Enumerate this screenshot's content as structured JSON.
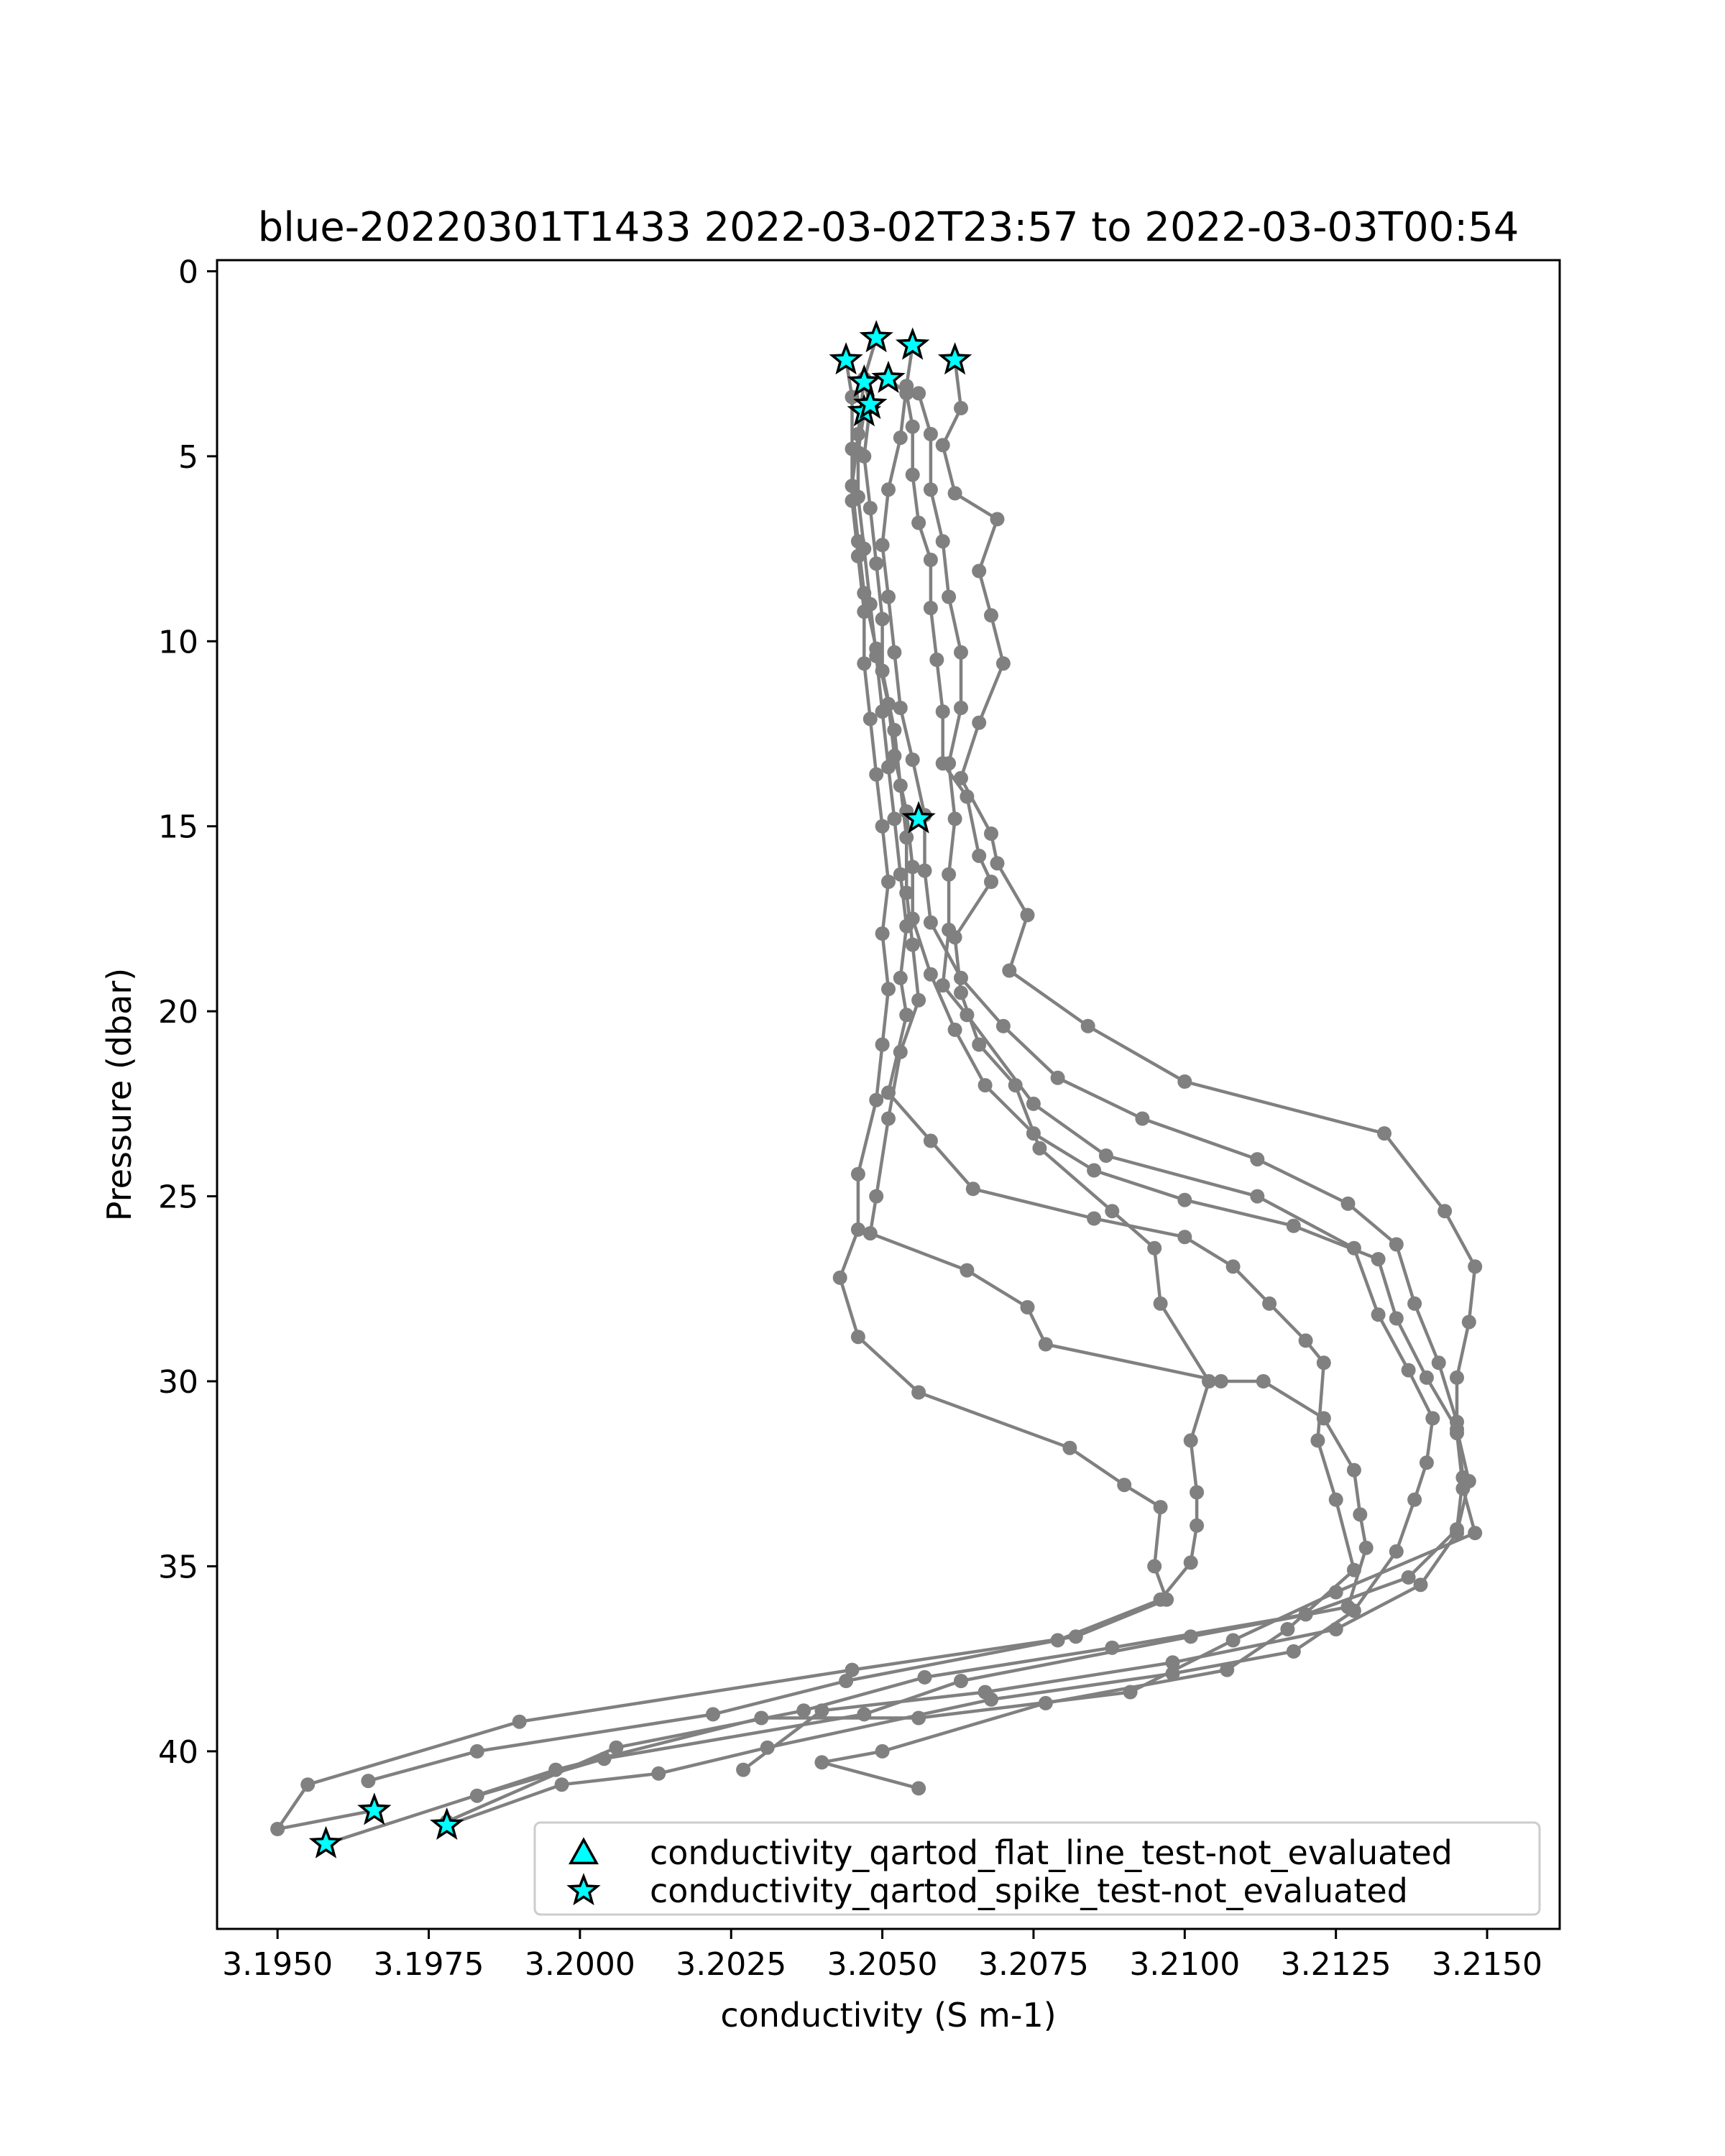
{
  "chart_data": {
    "type": "line",
    "title": "blue-20220301T1433 2022-03-02T23:57 to 2022-03-03T00:54",
    "xlabel": "conductivity (S m-1)",
    "ylabel": "Pressure (dbar)",
    "xlim": [
      3.194,
      3.2162
    ],
    "ylim": [
      44.8,
      -0.3
    ],
    "y_inverted": true,
    "grid": false,
    "x_ticks": [
      3.195,
      3.1975,
      3.2,
      3.2025,
      3.205,
      3.2075,
      3.21,
      3.2125,
      3.215
    ],
    "x_tick_labels": [
      "3.1950",
      "3.1975",
      "3.2000",
      "3.2025",
      "3.2050",
      "3.2075",
      "3.2100",
      "3.2125",
      "3.2150"
    ],
    "y_ticks": [
      0,
      5,
      10,
      15,
      20,
      25,
      30,
      35,
      40
    ],
    "y_tick_labels": [
      "0",
      "5",
      "10",
      "15",
      "20",
      "25",
      "30",
      "35",
      "40"
    ],
    "line_color": "#808080",
    "marker_fill": "#00ffff",
    "marker_edge": "#000000",
    "legend": {
      "position": "lower-right",
      "entries": [
        {
          "label": "conductivity_qartod_flat_line_test-not_evaluated",
          "marker": "triangle"
        },
        {
          "label": "conductivity_qartod_spike_test-not_evaluated",
          "marker": "star"
        }
      ]
    },
    "series": [
      {
        "points": [
          [
            3.2049,
            1.8
          ],
          [
            3.2047,
            2.9
          ],
          [
            3.2046,
            4.4
          ],
          [
            3.2045,
            5.8
          ],
          [
            3.2046,
            7.3
          ],
          [
            3.2047,
            8.7
          ],
          [
            3.2049,
            10.2
          ],
          [
            3.2051,
            11.7
          ],
          [
            3.2052,
            13.1
          ],
          [
            3.2054,
            14.6
          ],
          [
            3.2055,
            16.1
          ],
          [
            3.2055,
            17.5
          ],
          [
            3.2058,
            19.0
          ],
          [
            3.2062,
            20.5
          ],
          [
            3.2067,
            22.0
          ],
          [
            3.2075,
            23.3
          ],
          [
            3.2085,
            24.3
          ],
          [
            3.21,
            25.1
          ],
          [
            3.2118,
            25.8
          ],
          [
            3.2132,
            26.7
          ],
          [
            3.2135,
            28.3
          ],
          [
            3.214,
            29.9
          ],
          [
            3.2145,
            31.3
          ],
          [
            3.2147,
            32.7
          ],
          [
            3.2145,
            34.1
          ],
          [
            3.2139,
            35.5
          ],
          [
            3.2125,
            36.7
          ],
          [
            3.2098,
            37.6
          ],
          [
            3.2067,
            38.4
          ],
          [
            3.204,
            38.9
          ],
          [
            3.2027,
            40.5
          ]
        ]
      },
      {
        "points": [
          [
            3.2055,
            2.0
          ],
          [
            3.2054,
            3.1
          ],
          [
            3.2053,
            4.5
          ],
          [
            3.2051,
            5.9
          ],
          [
            3.205,
            7.4
          ],
          [
            3.2051,
            8.8
          ],
          [
            3.2052,
            10.3
          ],
          [
            3.2053,
            11.8
          ],
          [
            3.2055,
            13.2
          ],
          [
            3.2057,
            14.7
          ],
          [
            3.2057,
            16.2
          ],
          [
            3.2058,
            17.6
          ],
          [
            3.2063,
            19.1
          ],
          [
            3.207,
            20.4
          ],
          [
            3.2079,
            21.8
          ],
          [
            3.2093,
            22.9
          ],
          [
            3.2112,
            24.0
          ],
          [
            3.2127,
            25.2
          ],
          [
            3.2135,
            26.3
          ],
          [
            3.2138,
            27.9
          ],
          [
            3.2142,
            29.5
          ],
          [
            3.2145,
            31.1
          ],
          [
            3.2146,
            32.6
          ],
          [
            3.2145,
            34.0
          ],
          [
            3.2137,
            35.3
          ],
          [
            3.212,
            36.3
          ],
          [
            3.2088,
            37.2
          ],
          [
            3.2057,
            38.0
          ],
          [
            3.2037,
            38.9
          ],
          [
            3.2006,
            39.9
          ],
          [
            3.1978,
            41.9
          ]
        ]
      },
      {
        "points": [
          [
            3.2062,
            2.4
          ],
          [
            3.2063,
            3.7
          ],
          [
            3.206,
            4.7
          ],
          [
            3.2062,
            6.0
          ],
          [
            3.2069,
            6.7
          ],
          [
            3.2066,
            8.1
          ],
          [
            3.2068,
            9.3
          ],
          [
            3.207,
            10.6
          ],
          [
            3.2066,
            12.2
          ],
          [
            3.2063,
            13.7
          ],
          [
            3.2068,
            15.2
          ],
          [
            3.2069,
            16.0
          ],
          [
            3.2074,
            17.4
          ],
          [
            3.2071,
            18.9
          ],
          [
            3.2084,
            20.4
          ],
          [
            3.21,
            21.9
          ],
          [
            3.2133,
            23.3
          ],
          [
            3.2143,
            25.4
          ],
          [
            3.2148,
            26.9
          ],
          [
            3.2147,
            28.4
          ],
          [
            3.2145,
            29.9
          ],
          [
            3.2145,
            31.4
          ],
          [
            3.2146,
            32.9
          ],
          [
            3.2148,
            34.1
          ],
          [
            3.2125,
            35.7
          ],
          [
            3.2108,
            37.0
          ],
          [
            3.2091,
            38.4
          ],
          [
            3.2056,
            39.1
          ],
          [
            3.203,
            39.1
          ],
          [
            3.1996,
            40.5
          ],
          [
            3.1958,
            42.5
          ]
        ]
      },
      {
        "points": [
          [
            3.2044,
            2.4
          ],
          [
            3.2045,
            3.4
          ],
          [
            3.2045,
            4.8
          ],
          [
            3.2045,
            6.2
          ],
          [
            3.2046,
            7.7
          ],
          [
            3.2047,
            9.2
          ],
          [
            3.2047,
            10.6
          ],
          [
            3.2048,
            12.1
          ],
          [
            3.2049,
            13.6
          ],
          [
            3.205,
            15.0
          ],
          [
            3.2051,
            16.5
          ],
          [
            3.205,
            17.9
          ],
          [
            3.2051,
            19.4
          ],
          [
            3.205,
            20.9
          ],
          [
            3.2049,
            22.4
          ],
          [
            3.2046,
            24.4
          ],
          [
            3.2046,
            25.9
          ],
          [
            3.2043,
            27.2
          ],
          [
            3.2046,
            28.8
          ],
          [
            3.2056,
            30.3
          ],
          [
            3.2081,
            31.8
          ],
          [
            3.209,
            32.8
          ],
          [
            3.2096,
            33.4
          ],
          [
            3.2095,
            35.0
          ],
          [
            3.2097,
            35.9
          ],
          [
            3.2082,
            36.9
          ],
          [
            3.2045,
            37.8
          ],
          [
            3.199,
            39.2
          ],
          [
            3.1955,
            40.9
          ],
          [
            3.195,
            42.1
          ],
          [
            3.1966,
            41.6
          ]
        ]
      },
      {
        "points": [
          [
            3.2047,
            3.0
          ],
          [
            3.2048,
            3.6
          ],
          [
            3.2047,
            5.0
          ],
          [
            3.2048,
            6.4
          ],
          [
            3.2049,
            7.9
          ],
          [
            3.205,
            9.4
          ],
          [
            3.205,
            10.8
          ],
          [
            3.2052,
            12.4
          ],
          [
            3.2053,
            13.9
          ],
          [
            3.2054,
            15.3
          ],
          [
            3.2054,
            16.8
          ],
          [
            3.2055,
            18.2
          ],
          [
            3.2056,
            19.7
          ],
          [
            3.2053,
            21.1
          ],
          [
            3.2051,
            22.9
          ],
          [
            3.2049,
            25.0
          ],
          [
            3.2048,
            26.0
          ],
          [
            3.2064,
            27.0
          ],
          [
            3.2074,
            28.0
          ],
          [
            3.2077,
            29.0
          ],
          [
            3.2106,
            30.0
          ],
          [
            3.2113,
            30.0
          ],
          [
            3.2123,
            31.0
          ],
          [
            3.2128,
            32.4
          ],
          [
            3.2129,
            33.6
          ],
          [
            3.213,
            34.5
          ],
          [
            3.2127,
            36.1
          ],
          [
            3.2101,
            36.9
          ],
          [
            3.2063,
            38.1
          ],
          [
            3.2047,
            39.0
          ],
          [
            3.2004,
            40.2
          ],
          [
            3.1983,
            41.2
          ]
        ]
      },
      {
        "points": [
          [
            3.2051,
            2.9
          ],
          [
            3.2054,
            3.3
          ],
          [
            3.2055,
            4.2
          ],
          [
            3.2055,
            5.5
          ],
          [
            3.2056,
            6.8
          ],
          [
            3.2058,
            7.8
          ],
          [
            3.2058,
            9.1
          ],
          [
            3.2059,
            10.5
          ],
          [
            3.206,
            11.9
          ],
          [
            3.206,
            13.3
          ],
          [
            3.2064,
            14.2
          ],
          [
            3.2066,
            15.8
          ],
          [
            3.2068,
            16.5
          ],
          [
            3.2062,
            18.0
          ],
          [
            3.2063,
            19.5
          ],
          [
            3.2066,
            20.9
          ],
          [
            3.2072,
            22.0
          ],
          [
            3.2076,
            23.7
          ],
          [
            3.2088,
            25.4
          ],
          [
            3.2095,
            26.4
          ],
          [
            3.2096,
            27.9
          ],
          [
            3.2104,
            30.0
          ],
          [
            3.2101,
            31.6
          ],
          [
            3.2102,
            33.0
          ],
          [
            3.2102,
            33.9
          ],
          [
            3.2101,
            34.9
          ],
          [
            3.2096,
            35.9
          ],
          [
            3.2079,
            37.0
          ],
          [
            3.2044,
            38.1
          ],
          [
            3.2022,
            39.0
          ],
          [
            3.1983,
            40.0
          ],
          [
            3.1965,
            40.8
          ]
        ]
      },
      {
        "points": [
          [
            3.2056,
            3.3
          ],
          [
            3.2058,
            4.4
          ],
          [
            3.2058,
            5.9
          ],
          [
            3.206,
            7.3
          ],
          [
            3.2061,
            8.8
          ],
          [
            3.2063,
            10.3
          ],
          [
            3.2063,
            11.8
          ],
          [
            3.2061,
            13.3
          ],
          [
            3.2062,
            14.8
          ],
          [
            3.2061,
            16.3
          ],
          [
            3.2061,
            17.8
          ],
          [
            3.206,
            19.3
          ],
          [
            3.2064,
            20.1
          ],
          [
            3.2075,
            22.5
          ],
          [
            3.2087,
            23.9
          ],
          [
            3.2112,
            25.0
          ],
          [
            3.2128,
            26.4
          ],
          [
            3.2132,
            28.2
          ],
          [
            3.2137,
            29.7
          ],
          [
            3.2141,
            31.0
          ],
          [
            3.214,
            32.2
          ],
          [
            3.2138,
            33.2
          ],
          [
            3.2135,
            34.6
          ],
          [
            3.2128,
            36.2
          ],
          [
            3.2118,
            37.3
          ],
          [
            3.2098,
            37.9
          ],
          [
            3.2068,
            38.6
          ],
          [
            3.2031,
            39.9
          ],
          [
            3.2013,
            40.6
          ],
          [
            3.1997,
            40.9
          ],
          [
            3.1978,
            42.0
          ]
        ]
      },
      {
        "points": [
          [
            3.2047,
            3.8
          ],
          [
            3.2046,
            4.9
          ],
          [
            3.2046,
            6.1
          ],
          [
            3.2047,
            7.5
          ],
          [
            3.2048,
            9.0
          ],
          [
            3.2049,
            10.4
          ],
          [
            3.205,
            11.9
          ],
          [
            3.2051,
            13.4
          ],
          [
            3.2052,
            14.8
          ],
          [
            3.2053,
            16.3
          ],
          [
            3.2054,
            17.7
          ],
          [
            3.2053,
            19.1
          ],
          [
            3.2054,
            20.1
          ],
          [
            3.2051,
            22.2
          ],
          [
            3.2058,
            23.5
          ],
          [
            3.2065,
            24.8
          ],
          [
            3.2085,
            25.6
          ],
          [
            3.21,
            26.1
          ],
          [
            3.2108,
            26.9
          ],
          [
            3.2114,
            27.9
          ],
          [
            3.212,
            28.9
          ],
          [
            3.2123,
            29.5
          ],
          [
            3.2122,
            31.6
          ],
          [
            3.2125,
            33.2
          ],
          [
            3.2128,
            35.1
          ],
          [
            3.2117,
            36.7
          ],
          [
            3.2107,
            37.8
          ],
          [
            3.2077,
            38.7
          ],
          [
            3.205,
            40.0
          ],
          [
            3.204,
            40.3
          ],
          [
            3.2056,
            41.0
          ]
        ]
      }
    ],
    "flagged_points": [
      [
        3.2049,
        1.8
      ],
      [
        3.2055,
        2.0
      ],
      [
        3.2062,
        2.4
      ],
      [
        3.2044,
        2.4
      ],
      [
        3.2047,
        3.0
      ],
      [
        3.2051,
        2.9
      ],
      [
        3.2047,
        3.8
      ],
      [
        3.2048,
        3.6
      ],
      [
        3.2056,
        14.8
      ],
      [
        3.1958,
        42.5
      ],
      [
        3.1966,
        41.6
      ],
      [
        3.1978,
        42.0
      ]
    ]
  }
}
